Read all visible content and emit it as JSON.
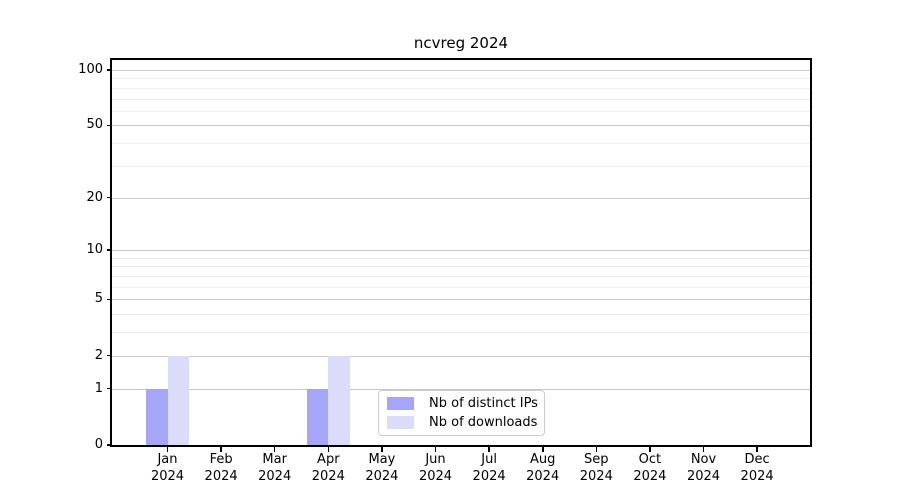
{
  "chart_data": {
    "type": "bar",
    "title": "ncvreg 2024",
    "categories": [
      "Jan 2024",
      "Feb 2024",
      "Mar 2024",
      "Apr 2024",
      "May 2024",
      "Jun 2024",
      "Jul 2024",
      "Aug 2024",
      "Sep 2024",
      "Oct 2024",
      "Nov 2024",
      "Dec 2024"
    ],
    "series": [
      {
        "name": "Nb of distinct IPs",
        "color": "#a6a6f8",
        "values": [
          1,
          0,
          0,
          1,
          0,
          0,
          0,
          0,
          0,
          0,
          0,
          0
        ]
      },
      {
        "name": "Nb of downloads",
        "color": "#dbdbfa",
        "values": [
          2,
          0,
          0,
          2,
          0,
          0,
          0,
          0,
          0,
          0,
          0,
          0
        ]
      }
    ],
    "xlabel": "",
    "ylabel": "",
    "yscale": "log1p",
    "ylim": [
      0,
      113
    ],
    "yticks_major": [
      0,
      1,
      2,
      5,
      10,
      20,
      50,
      100
    ],
    "yticks_minor": [
      3,
      4,
      6,
      7,
      8,
      9,
      30,
      40,
      60,
      70,
      80,
      90
    ],
    "grid": "horizontal",
    "legend_position": "inside-bottom-center"
  },
  "colors": {
    "grid_major": "#c8c8c8",
    "grid_minor": "#ededed",
    "spine": "#000000",
    "text": "#000000",
    "legend_border": "#cccccc",
    "background": "#ffffff"
  }
}
